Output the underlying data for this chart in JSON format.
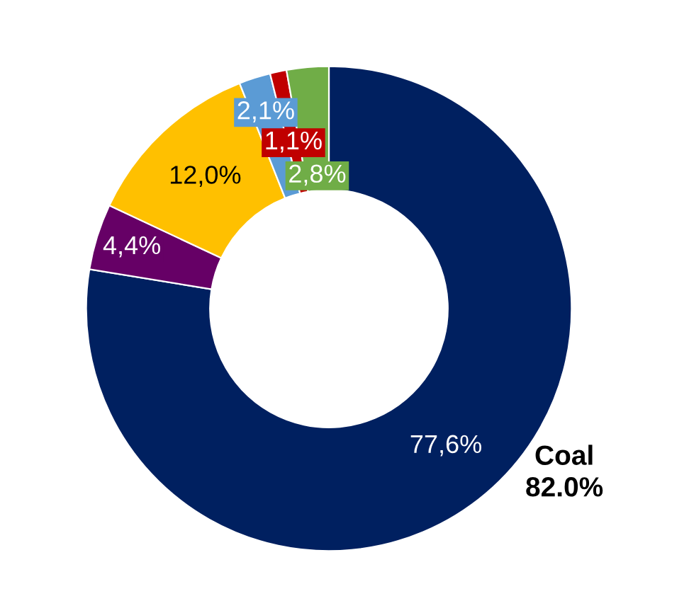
{
  "chart_data": {
    "type": "donut",
    "categories": [
      null,
      null,
      null,
      null,
      null,
      null
    ],
    "values": [
      77.6,
      4.4,
      12.0,
      2.1,
      1.1,
      2.8
    ],
    "colors": [
      "#002060",
      "#660066",
      "#ffc000",
      "#5b9bd5",
      "#c00000",
      "#70ad47"
    ],
    "value_labels": [
      "77,6%",
      "4,4%",
      "12,0%",
      "2,1%",
      "1,1%",
      "2,8%"
    ],
    "annotations": [
      "Coal\n82.0%"
    ]
  }
}
